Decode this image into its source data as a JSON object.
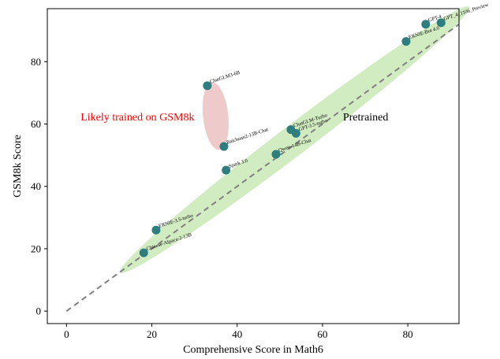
{
  "chart_data": {
    "type": "scatter",
    "title": "",
    "xlabel": "Comprehensive Score in Math6",
    "ylabel": "GSM8k Score",
    "xlim": [
      -4.5,
      92
    ],
    "ylim": [
      -4,
      97
    ],
    "x_ticks": [
      0,
      20,
      40,
      60,
      80
    ],
    "y_ticks": [
      0,
      20,
      40,
      60,
      80
    ],
    "grid": false,
    "legend": "none",
    "points": [
      {
        "label": "GPT-4",
        "x": 84.2,
        "y": 92.0
      },
      {
        "label": "GPT_4_1106_Preview",
        "x": 87.8,
        "y": 92.5
      },
      {
        "label": "ERNIE-Bot 4.0",
        "x": 79.6,
        "y": 86.5
      },
      {
        "label": "ChatGLM3-6B",
        "x": 33.0,
        "y": 72.3
      },
      {
        "label": "ChatGLM-Turbo",
        "x": 52.6,
        "y": 58.2
      },
      {
        "label": "GPT-3.5-turbo",
        "x": 53.8,
        "y": 57.0
      },
      {
        "label": "Baichuan2-13B-Chat",
        "x": 36.9,
        "y": 52.8
      },
      {
        "label": "Qwen-14B-Chat",
        "x": 49.1,
        "y": 50.3
      },
      {
        "label": "Spark 3.0",
        "x": 37.4,
        "y": 45.2
      },
      {
        "label": "ERNIE-3.5-turbo",
        "x": 21.0,
        "y": 26.0
      },
      {
        "label": "Chinese-Alpaca-2-13B",
        "x": 18.1,
        "y": 18.7
      }
    ],
    "reference_line": {
      "from": [
        0,
        0
      ],
      "to": [
        92,
        92
      ],
      "style": "dashed",
      "color": "#808080"
    },
    "regions": [
      {
        "label": "Pretrained",
        "color": "#7ec850"
      },
      {
        "label": "Likely trained on GSM8k",
        "color": "#d98a8a"
      }
    ],
    "annotations": [
      {
        "text": "Likely trained on GSM8k",
        "color": "#ff0000"
      },
      {
        "text": "Pretrained",
        "color": "#000000"
      }
    ],
    "point_color": "#2e7d7f"
  }
}
